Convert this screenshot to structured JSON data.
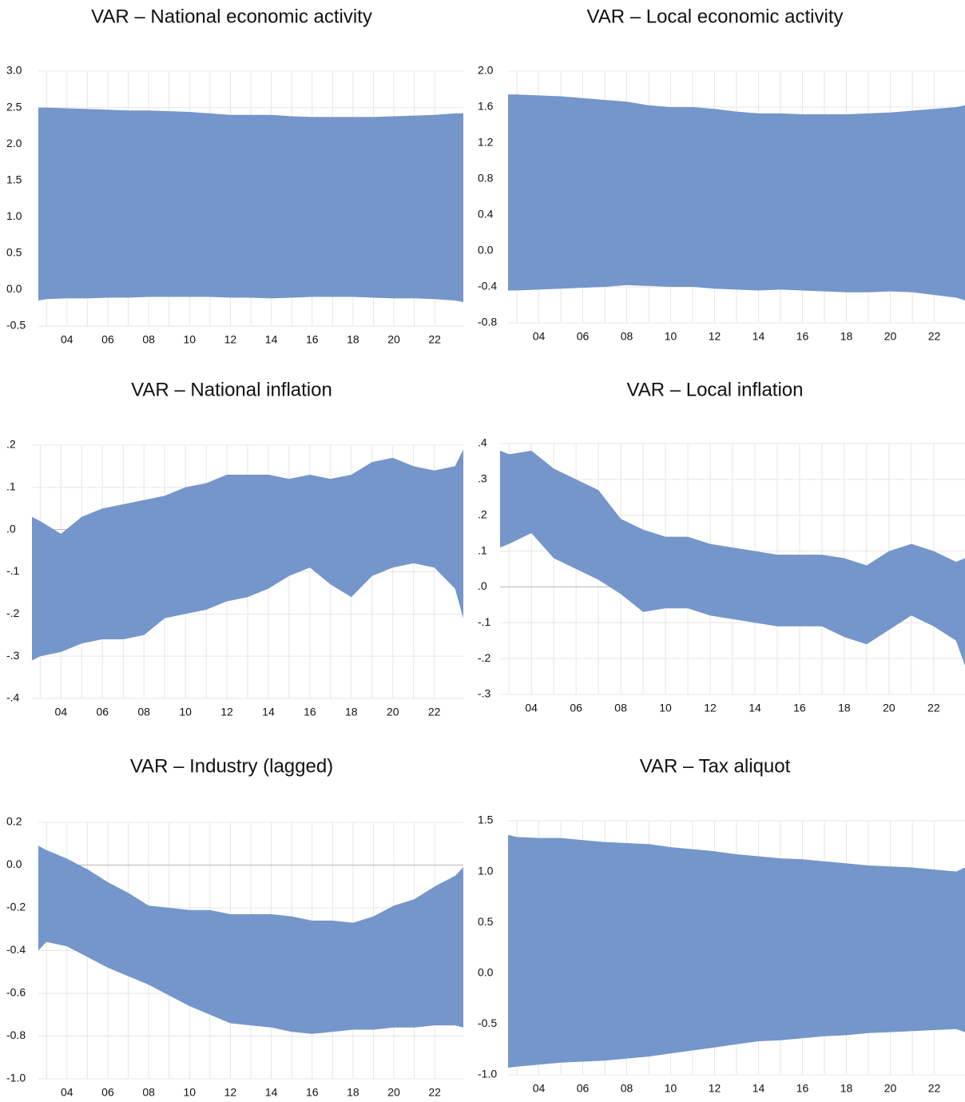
{
  "chart_data": [
    {
      "type": "band",
      "title": "VAR – National economic activity",
      "color": "#7496ca",
      "grid": true,
      "x": [
        2.6,
        3,
        4,
        5,
        6,
        7,
        8,
        9,
        10,
        11,
        12,
        13,
        14,
        15,
        16,
        17,
        18,
        19,
        20,
        21,
        22,
        23,
        23.4
      ],
      "upper": [
        2.5,
        2.5,
        2.49,
        2.48,
        2.47,
        2.46,
        2.46,
        2.45,
        2.44,
        2.42,
        2.4,
        2.4,
        2.4,
        2.38,
        2.37,
        2.37,
        2.37,
        2.37,
        2.38,
        2.39,
        2.4,
        2.42,
        2.42
      ],
      "lower": [
        -0.15,
        -0.13,
        -0.12,
        -0.12,
        -0.11,
        -0.11,
        -0.1,
        -0.1,
        -0.1,
        -0.1,
        -0.11,
        -0.11,
        -0.12,
        -0.11,
        -0.1,
        -0.1,
        -0.1,
        -0.11,
        -0.12,
        -0.12,
        -0.13,
        -0.15,
        -0.17
      ],
      "xlim": [
        2.6,
        23.4
      ],
      "xticks": [
        {
          "value": 4,
          "label": "04"
        },
        {
          "value": 6,
          "label": "06"
        },
        {
          "value": 8,
          "label": "08"
        },
        10,
        12,
        14,
        16,
        18,
        20,
        22
      ],
      "ylim": [
        -0.5,
        3.0
      ],
      "yticks": [
        {
          "value": -0.5,
          "label": "-0.5"
        },
        {
          "value": 0,
          "label": "0.0"
        },
        {
          "value": 0.5,
          "label": "0.5"
        },
        {
          "value": 1,
          "label": "1.0"
        },
        {
          "value": 1.5,
          "label": "1.5"
        },
        {
          "value": 2,
          "label": "2.0"
        },
        {
          "value": 2.5,
          "label": "2.5"
        },
        {
          "value": 3,
          "label": "3.0"
        }
      ]
    },
    {
      "type": "band",
      "title": "VAR – Local economic activity",
      "color": "#7496ca",
      "grid": true,
      "x": [
        2.6,
        3,
        4,
        5,
        6,
        7,
        8,
        9,
        10,
        11,
        12,
        13,
        14,
        15,
        16,
        17,
        18,
        19,
        20,
        21,
        22,
        23,
        23.4
      ],
      "upper": [
        1.74,
        1.74,
        1.73,
        1.72,
        1.7,
        1.68,
        1.66,
        1.62,
        1.6,
        1.6,
        1.58,
        1.55,
        1.53,
        1.53,
        1.52,
        1.52,
        1.52,
        1.53,
        1.54,
        1.56,
        1.58,
        1.6,
        1.62
      ],
      "lower": [
        -0.44,
        -0.44,
        -0.43,
        -0.42,
        -0.41,
        -0.4,
        -0.38,
        -0.39,
        -0.4,
        -0.4,
        -0.42,
        -0.43,
        -0.44,
        -0.43,
        -0.44,
        -0.45,
        -0.46,
        -0.46,
        -0.45,
        -0.46,
        -0.49,
        -0.52,
        -0.55
      ],
      "xlim": [
        2.6,
        23.4
      ],
      "xticks": [
        {
          "value": 4,
          "label": "04"
        },
        {
          "value": 6,
          "label": "06"
        },
        {
          "value": 8,
          "label": "08"
        },
        10,
        12,
        14,
        16,
        18,
        20,
        22
      ],
      "ylim": [
        -0.8,
        2.0
      ],
      "yticks": [
        {
          "value": -0.8,
          "label": "-0.8"
        },
        {
          "value": -0.4,
          "label": "-0.4"
        },
        {
          "value": 0,
          "label": "0.0"
        },
        {
          "value": 0.4,
          "label": "0.4"
        },
        {
          "value": 0.8,
          "label": "0.8"
        },
        {
          "value": 1.2,
          "label": "1.2"
        },
        {
          "value": 1.6,
          "label": "1.6"
        },
        {
          "value": 2,
          "label": "2.0"
        }
      ]
    },
    {
      "type": "band",
      "title": "VAR – National inflation",
      "color": "#7496ca",
      "grid": true,
      "x": [
        2.6,
        3,
        4,
        5,
        6,
        7,
        8,
        9,
        10,
        11,
        12,
        13,
        14,
        15,
        16,
        17,
        18,
        19,
        20,
        21,
        22,
        23,
        23.4
      ],
      "upper": [
        0.03,
        0.02,
        -0.01,
        0.03,
        0.05,
        0.06,
        0.07,
        0.08,
        0.1,
        0.11,
        0.13,
        0.13,
        0.13,
        0.12,
        0.13,
        0.12,
        0.13,
        0.16,
        0.17,
        0.15,
        0.14,
        0.15,
        0.19
      ],
      "lower": [
        -0.31,
        -0.3,
        -0.29,
        -0.27,
        -0.26,
        -0.26,
        -0.25,
        -0.21,
        -0.2,
        -0.19,
        -0.17,
        -0.16,
        -0.14,
        -0.11,
        -0.09,
        -0.13,
        -0.16,
        -0.11,
        -0.09,
        -0.08,
        -0.09,
        -0.14,
        -0.21
      ],
      "xlim": [
        2.6,
        23.4
      ],
      "xticks": [
        {
          "value": 4,
          "label": "04"
        },
        {
          "value": 6,
          "label": "06"
        },
        {
          "value": 8,
          "label": "08"
        },
        10,
        12,
        14,
        16,
        18,
        20,
        22
      ],
      "ylim": [
        -0.4,
        0.2
      ],
      "yticks": [
        {
          "value": -0.4,
          "label": "-.4"
        },
        {
          "value": -0.3,
          "label": "-.3"
        },
        {
          "value": -0.2,
          "label": "-.2"
        },
        {
          "value": -0.1,
          "label": "-.1"
        },
        {
          "value": 0,
          "label": ".0"
        },
        {
          "value": 0.1,
          "label": ".1"
        },
        {
          "value": 0.2,
          "label": ".2"
        }
      ]
    },
    {
      "type": "band",
      "title": "VAR – Local inflation",
      "color": "#7496ca",
      "grid": true,
      "x": [
        2.6,
        3,
        4,
        5,
        6,
        7,
        8,
        9,
        10,
        11,
        12,
        13,
        14,
        15,
        16,
        17,
        18,
        19,
        20,
        21,
        22,
        23,
        23.4
      ],
      "upper": [
        0.38,
        0.37,
        0.38,
        0.33,
        0.3,
        0.27,
        0.19,
        0.16,
        0.14,
        0.14,
        0.12,
        0.11,
        0.1,
        0.09,
        0.09,
        0.09,
        0.08,
        0.06,
        0.1,
        0.12,
        0.1,
        0.07,
        0.08
      ],
      "lower": [
        0.11,
        0.12,
        0.15,
        0.08,
        0.05,
        0.02,
        -0.02,
        -0.07,
        -0.06,
        -0.06,
        -0.08,
        -0.09,
        -0.1,
        -0.11,
        -0.11,
        -0.11,
        -0.14,
        -0.16,
        -0.12,
        -0.08,
        -0.11,
        -0.15,
        -0.22
      ],
      "xlim": [
        2.6,
        23.4
      ],
      "xticks": [
        {
          "value": 4,
          "label": "04"
        },
        {
          "value": 6,
          "label": "06"
        },
        {
          "value": 8,
          "label": "08"
        },
        10,
        12,
        14,
        16,
        18,
        20,
        22
      ],
      "ylim": [
        -0.3,
        0.4
      ],
      "yticks": [
        {
          "value": -0.3,
          "label": "-.3"
        },
        {
          "value": -0.2,
          "label": "-.2"
        },
        {
          "value": -0.1,
          "label": "-.1"
        },
        {
          "value": 0,
          "label": ".0"
        },
        {
          "value": 0.1,
          "label": ".1"
        },
        {
          "value": 0.2,
          "label": ".2"
        },
        {
          "value": 0.3,
          "label": ".3"
        },
        {
          "value": 0.4,
          "label": ".4"
        }
      ]
    },
    {
      "type": "band",
      "title": "VAR – Industry (lagged)",
      "color": "#7496ca",
      "grid": true,
      "x": [
        2.6,
        3,
        4,
        5,
        6,
        7,
        8,
        9,
        10,
        11,
        12,
        13,
        14,
        15,
        16,
        17,
        18,
        19,
        20,
        21,
        22,
        23,
        23.4
      ],
      "upper": [
        0.09,
        0.07,
        0.03,
        -0.02,
        -0.08,
        -0.13,
        -0.19,
        -0.2,
        -0.21,
        -0.21,
        -0.23,
        -0.23,
        -0.23,
        -0.24,
        -0.26,
        -0.26,
        -0.27,
        -0.24,
        -0.19,
        -0.16,
        -0.1,
        -0.05,
        -0.01
      ],
      "lower": [
        -0.4,
        -0.36,
        -0.38,
        -0.43,
        -0.48,
        -0.52,
        -0.56,
        -0.61,
        -0.66,
        -0.7,
        -0.74,
        -0.75,
        -0.76,
        -0.78,
        -0.79,
        -0.78,
        -0.77,
        -0.77,
        -0.76,
        -0.76,
        -0.75,
        -0.75,
        -0.76
      ],
      "xlim": [
        2.6,
        23.4
      ],
      "xticks": [
        {
          "value": 4,
          "label": "04"
        },
        {
          "value": 6,
          "label": "06"
        },
        {
          "value": 8,
          "label": "08"
        },
        10,
        12,
        14,
        16,
        18,
        20,
        22
      ],
      "ylim": [
        -1.0,
        0.2
      ],
      "yticks": [
        {
          "value": -1,
          "label": "-1.0"
        },
        {
          "value": -0.8,
          "label": "-0.8"
        },
        {
          "value": -0.6,
          "label": "-0.6"
        },
        {
          "value": -0.4,
          "label": "-0.4"
        },
        {
          "value": -0.2,
          "label": "-0.2"
        },
        {
          "value": 0,
          "label": "0.0"
        },
        {
          "value": 0.2,
          "label": "0.2"
        }
      ]
    },
    {
      "type": "band",
      "title": "VAR – Tax aliquot",
      "color": "#7496ca",
      "grid": true,
      "x": [
        2.6,
        3,
        4,
        5,
        6,
        7,
        8,
        9,
        10,
        11,
        12,
        13,
        14,
        15,
        16,
        17,
        18,
        19,
        20,
        21,
        22,
        23,
        23.4
      ],
      "upper": [
        1.36,
        1.34,
        1.33,
        1.33,
        1.31,
        1.29,
        1.28,
        1.27,
        1.24,
        1.22,
        1.2,
        1.17,
        1.15,
        1.13,
        1.12,
        1.1,
        1.08,
        1.06,
        1.05,
        1.04,
        1.02,
        1.0,
        1.04
      ],
      "lower": [
        -0.93,
        -0.92,
        -0.9,
        -0.88,
        -0.87,
        -0.86,
        -0.84,
        -0.82,
        -0.79,
        -0.76,
        -0.73,
        -0.7,
        -0.67,
        -0.66,
        -0.64,
        -0.62,
        -0.61,
        -0.59,
        -0.58,
        -0.57,
        -0.56,
        -0.55,
        -0.58
      ],
      "xlim": [
        2.6,
        23.4
      ],
      "xticks": [
        {
          "value": 4,
          "label": "04"
        },
        {
          "value": 6,
          "label": "06"
        },
        {
          "value": 8,
          "label": "08"
        },
        10,
        12,
        14,
        16,
        18,
        20,
        22
      ],
      "ylim": [
        -1.0,
        1.5
      ],
      "yticks": [
        {
          "value": -1,
          "label": "-1.0"
        },
        {
          "value": -0.5,
          "label": "-0.5"
        },
        {
          "value": 0,
          "label": "0.0"
        },
        {
          "value": 0.5,
          "label": "0.5"
        },
        {
          "value": 1,
          "label": "1.0"
        },
        {
          "value": 1.5,
          "label": "1.5"
        }
      ]
    }
  ]
}
